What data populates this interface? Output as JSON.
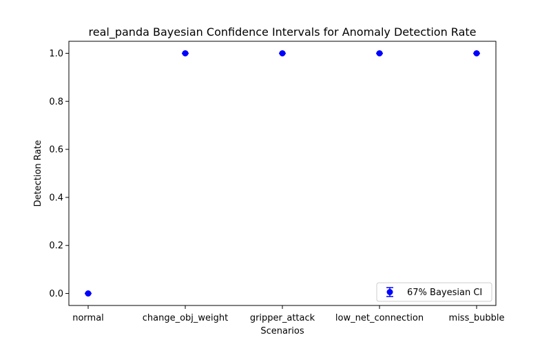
{
  "chart_data": {
    "type": "scatter",
    "title": "real_panda Bayesian Confidence Intervals for Anomaly Detection Rate",
    "xlabel": "Scenarios",
    "ylabel": "Detection Rate",
    "categories": [
      "normal",
      "change_obj_weight",
      "gripper_attack",
      "low_net_connection",
      "miss_bubble"
    ],
    "series": [
      {
        "name": "67% Bayesian CI",
        "values": [
          0.0,
          1.0,
          1.0,
          1.0,
          1.0
        ],
        "ci_lower": [
          0.0,
          1.0,
          1.0,
          1.0,
          1.0
        ],
        "ci_upper": [
          0.0,
          1.0,
          1.0,
          1.0,
          1.0
        ],
        "color": "#0000ff"
      }
    ],
    "ylim": [
      -0.05,
      1.05
    ],
    "yticks": [
      "0.0",
      "0.2",
      "0.4",
      "0.6",
      "0.8",
      "1.0"
    ],
    "grid": false,
    "legend_position": "lower-right"
  }
}
